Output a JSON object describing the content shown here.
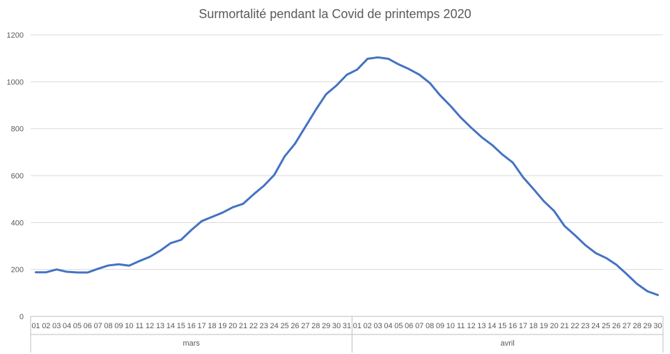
{
  "chart_data": {
    "type": "line",
    "title": "Surmortalité pendant la Covid de printemps 2020",
    "xlabel": "",
    "ylabel": "",
    "ylim": [
      0,
      1200
    ],
    "yticks": [
      0,
      200,
      400,
      600,
      800,
      1000,
      1200
    ],
    "grid": true,
    "legend": "none",
    "color": "#4472c4",
    "groups": [
      {
        "label": "mars",
        "days": [
          "01",
          "02",
          "03",
          "04",
          "05",
          "06",
          "07",
          "08",
          "09",
          "10",
          "11",
          "12",
          "13",
          "14",
          "15",
          "16",
          "17",
          "18",
          "19",
          "20",
          "21",
          "22",
          "23",
          "24",
          "25",
          "26",
          "27",
          "28",
          "29",
          "30",
          "31"
        ]
      },
      {
        "label": "avril",
        "days": [
          "01",
          "02",
          "03",
          "04",
          "05",
          "06",
          "07",
          "08",
          "09",
          "10",
          "11",
          "12",
          "13",
          "14",
          "15",
          "16",
          "17",
          "18",
          "19",
          "20",
          "21",
          "22",
          "23",
          "24",
          "25",
          "26",
          "27",
          "28",
          "29",
          "30"
        ]
      }
    ],
    "series": [
      {
        "values": [
          188,
          188,
          200,
          190,
          187,
          187,
          203,
          217,
          222,
          216,
          236,
          254,
          280,
          312,
          326,
          368,
          406,
          424,
          442,
          465,
          480,
          520,
          557,
          603,
          682,
          736,
          808,
          880,
          947,
          984,
          1030,
          1052,
          1098,
          1104,
          1098,
          1074,
          1054,
          1030,
          995,
          942,
          897,
          847,
          804,
          764,
          731,
          690,
          656,
          593,
          543,
          491,
          449,
          385,
          346,
          304,
          270,
          249,
          220,
          180,
          138,
          107,
          91
        ]
      }
    ]
  }
}
